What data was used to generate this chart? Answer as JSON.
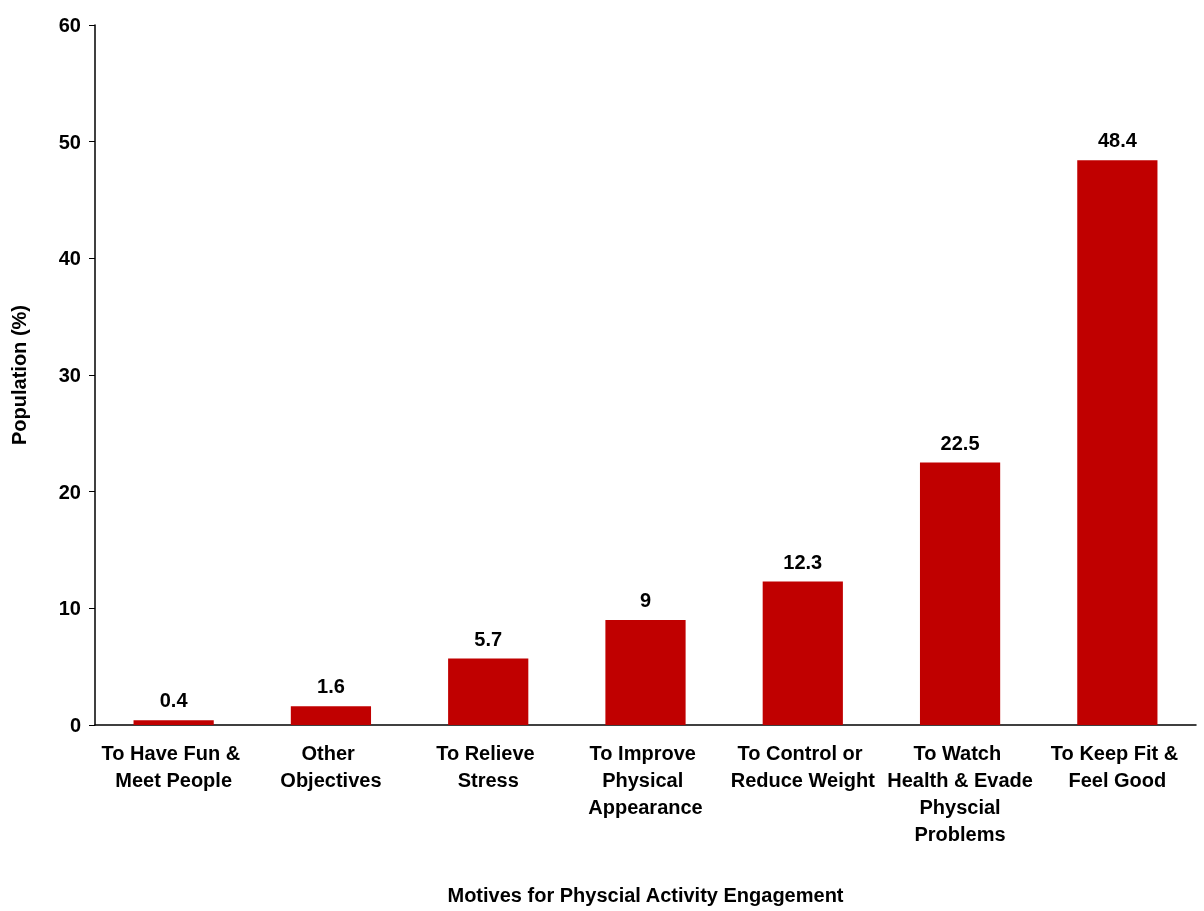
{
  "chart_data": {
    "type": "bar",
    "xlabel": "Motives for Physcial Activity Engagement",
    "ylabel": "Population (%)",
    "categories": [
      "To Have Fun & Meet People",
      "Other Objectives",
      "To Relieve Stress",
      "To Improve Physical Appearance",
      "To Control or Reduce Weight",
      "To Watch Health & Evade Physcial Problems",
      "To Keep Fit & Feel Good"
    ],
    "values": [
      0.4,
      1.6,
      5.7,
      9,
      12.3,
      22.5,
      48.4
    ],
    "color": "#c00000",
    "ylim": [
      0,
      60
    ],
    "yticks": [
      0,
      10,
      20,
      30,
      40,
      50,
      60
    ],
    "grid": false,
    "data_labels": true
  }
}
